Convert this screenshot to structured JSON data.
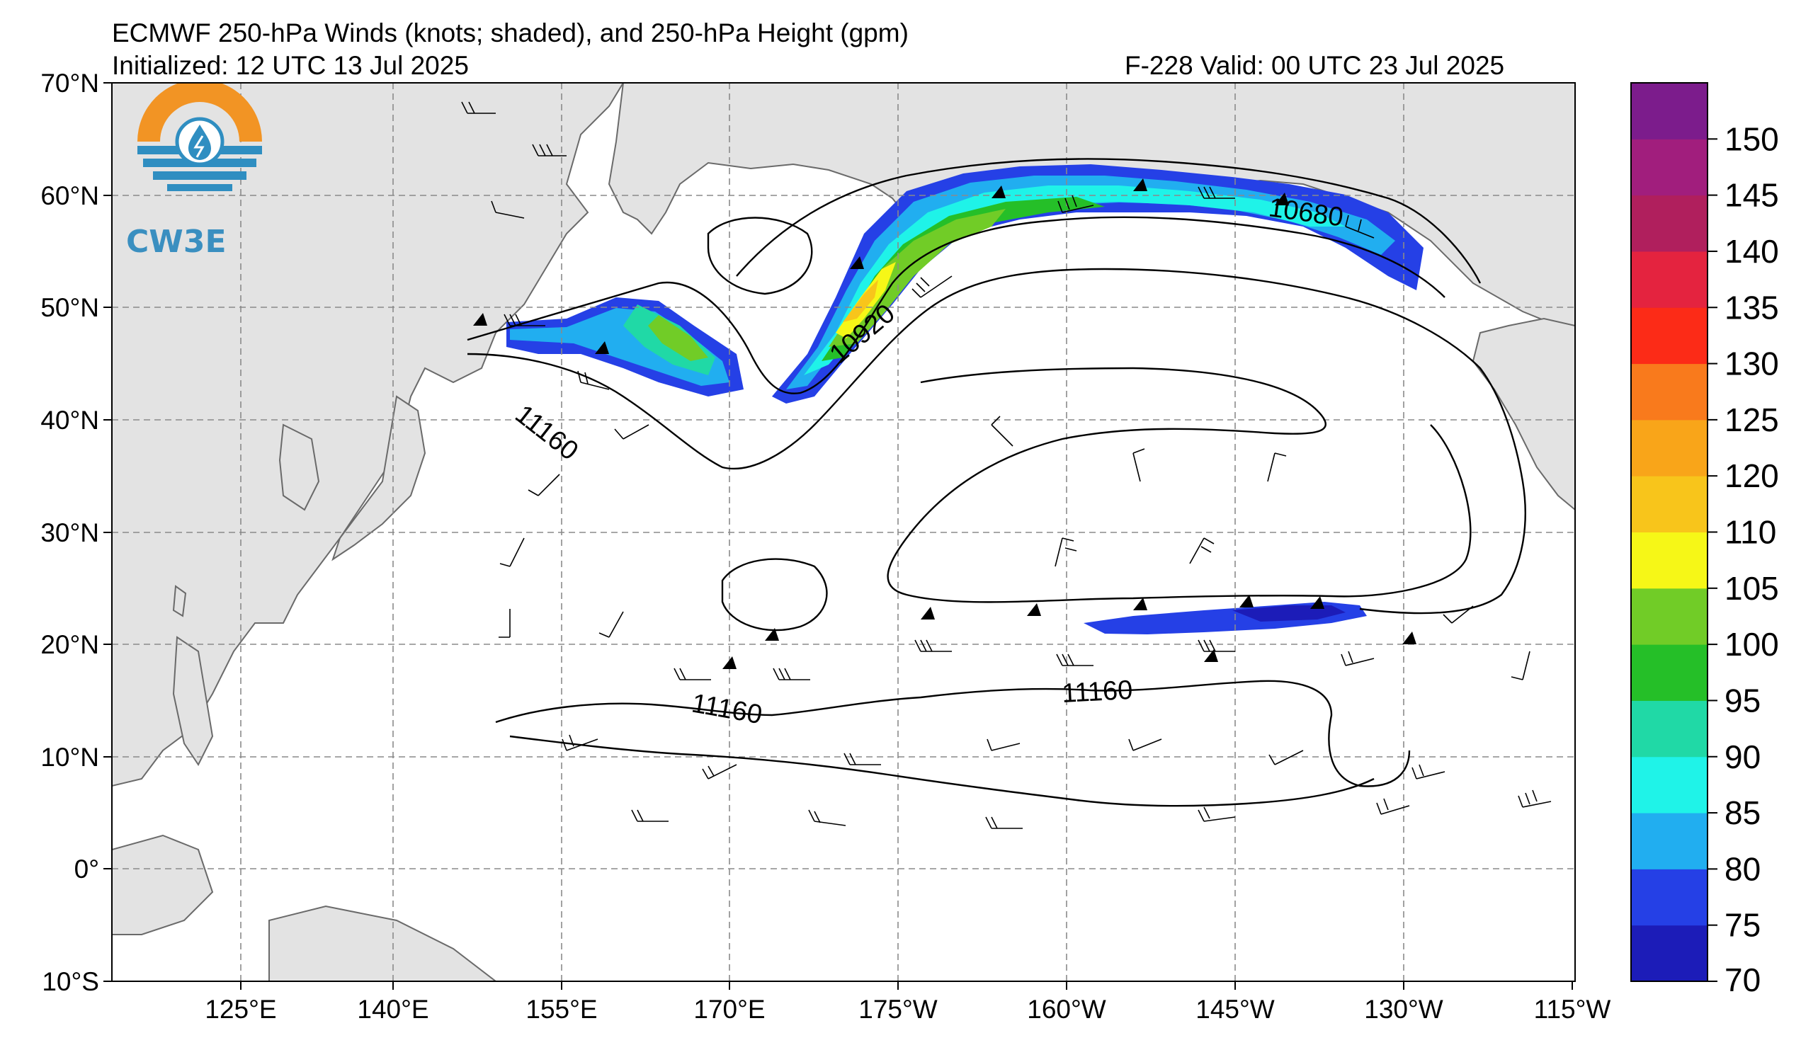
{
  "title": {
    "line1": "ECMWF 250-hPa Winds (knots; shaded), and 250-hPa Height (gpm)",
    "initialized": "Initialized: 12 UTC 13 Jul 2025",
    "valid": "F-228  Valid: 00 UTC 23 Jul 2025"
  },
  "logo": {
    "text": "CW3E",
    "icon": "water-drop-logo-icon"
  },
  "map": {
    "lat_labels": [
      "70°N",
      "60°N",
      "50°N",
      "40°N",
      "30°N",
      "20°N",
      "10°N",
      "0°",
      "10°S"
    ],
    "lon_labels": [
      "125°E",
      "140°E",
      "155°E",
      "170°E",
      "175°W",
      "160°W",
      "145°W",
      "130°W",
      "115°W"
    ],
    "lat_range": [
      -10,
      70
    ],
    "lon_range": [
      115,
      245
    ],
    "contour_labels": [
      {
        "text": "10680",
        "lon": 212,
        "lat": 59
      },
      {
        "text": "10920",
        "lon": 187,
        "lat": 47
      },
      {
        "text": "11160",
        "lon": 160,
        "lat": 40
      },
      {
        "text": "11160",
        "lon": 176,
        "lat": 14
      },
      {
        "text": "11160",
        "lon": 206,
        "lat": 16
      }
    ]
  },
  "colorbar": {
    "ticks": [
      "150",
      "145",
      "140",
      "135",
      "130",
      "125",
      "120",
      "110",
      "105",
      "100",
      "95",
      "90",
      "85",
      "80",
      "75",
      "70"
    ],
    "colors": [
      "#1c1cb8",
      "#2540e6",
      "#21aef0",
      "#1ff3e8",
      "#20d9a6",
      "#25bf28",
      "#71cc27",
      "#f6f717",
      "#f8c51b",
      "#f9a519",
      "#f97a1c",
      "#fc2b17",
      "#e4233f",
      "#b01f5d",
      "#a11e7d",
      "#7c1c8c"
    ]
  }
}
